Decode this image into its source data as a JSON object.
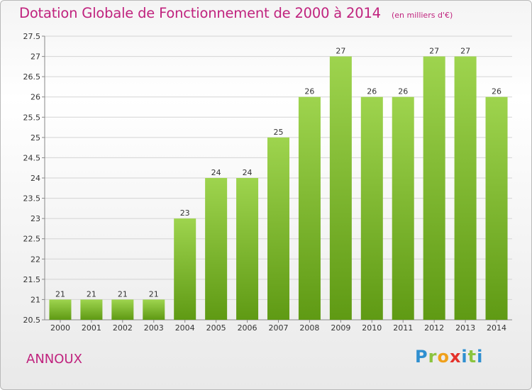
{
  "header": {
    "title": "Dotation Globale de Fonctionnement de 2000 à 2014",
    "subtitle": "(en milliers d'€)"
  },
  "footer": {
    "place": "ANNOUX",
    "logo_text": "Proxiti"
  },
  "colors": {
    "title": "#c0237e",
    "bar_top": "#9ed44e",
    "bar_bottom": "#5f9a14",
    "grid": "#d4d4d4"
  },
  "chart_data": {
    "type": "bar",
    "title": "Dotation Globale de Fonctionnement de 2000 à 2014",
    "subtitle": "(en milliers d'€)",
    "categories": [
      "2000",
      "2001",
      "2002",
      "2003",
      "2004",
      "2005",
      "2006",
      "2007",
      "2008",
      "2009",
      "2010",
      "2011",
      "2012",
      "2013",
      "2014"
    ],
    "values": [
      21,
      21,
      21,
      21,
      23,
      24,
      24,
      25,
      26,
      27,
      26,
      26,
      27,
      27,
      26
    ],
    "data_labels": [
      "21",
      "21",
      "21",
      "21",
      "23",
      "24",
      "24",
      "25",
      "26",
      "27",
      "26",
      "26",
      "27",
      "27",
      "26"
    ],
    "ylim": [
      20.5,
      27.5
    ],
    "yticks": [
      20.5,
      21,
      21.5,
      22,
      22.5,
      23,
      23.5,
      24,
      24.5,
      25,
      25.5,
      26,
      26.5,
      27,
      27.5
    ],
    "ytick_labels": [
      "20.5",
      "21",
      "21.5",
      "22",
      "22.5",
      "23",
      "23.5",
      "24",
      "24.5",
      "25",
      "25.5",
      "26",
      "26.5",
      "27",
      "27.5"
    ],
    "grid": true,
    "legend": "none"
  }
}
